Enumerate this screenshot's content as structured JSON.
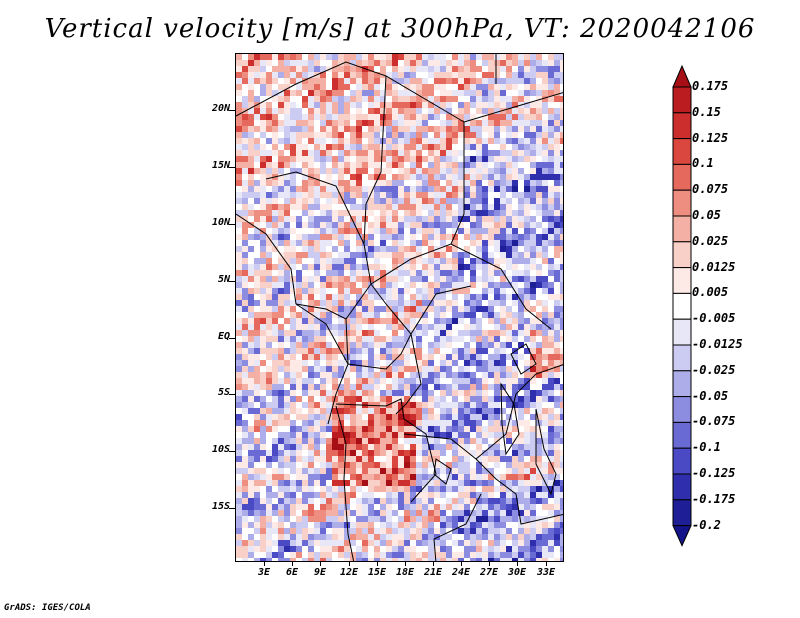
{
  "title": "Vertical velocity [m/s] at 300hPa, VT: 2020042106",
  "credit": "GrADS: IGES/COLA",
  "map": {
    "lat_labels": [
      "20N",
      "15N",
      "10N",
      "5N",
      "EQ",
      "5S",
      "10S",
      "15S"
    ],
    "lon_labels": [
      "3E",
      "6E",
      "9E",
      "12E",
      "15E",
      "18E",
      "21E",
      "24E",
      "27E",
      "30E",
      "33E"
    ]
  },
  "colorbar": {
    "labels": [
      "0.175",
      "0.15",
      "0.125",
      "0.1",
      "0.075",
      "0.05",
      "0.025",
      "0.0125",
      "0.005",
      "-0.005",
      "-0.0125",
      "-0.025",
      "-0.05",
      "-0.075",
      "-0.1",
      "-0.125",
      "-0.175",
      "-0.2"
    ],
    "colors": [
      "#a50f15",
      "#bb1c1f",
      "#cb2e2d",
      "#d9473f",
      "#e56a5d",
      "#ee8e80",
      "#f4b0a4",
      "#f9d0c8",
      "#fdeae6",
      "#ffffff",
      "#e7e7f8",
      "#ccccf2",
      "#adadea",
      "#8c8ce0",
      "#6a6ad4",
      "#4a4ac4",
      "#2f2fae",
      "#1e1e96",
      "#14148a"
    ]
  }
}
